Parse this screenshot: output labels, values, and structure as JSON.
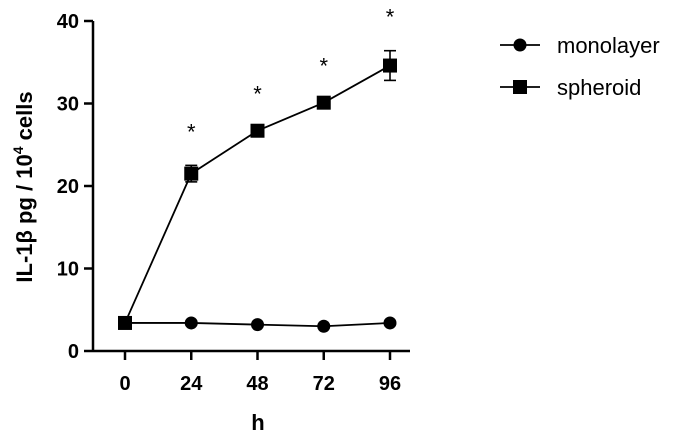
{
  "chart_data": {
    "type": "line",
    "title": "",
    "xlabel": "h",
    "ylabel": {
      "pre": "IL-1β  pg / 10",
      "sup": "4",
      "post": " cells"
    },
    "x": [
      0,
      24,
      48,
      72,
      96
    ],
    "x_tick_labels": [
      "0",
      "24",
      "48",
      "72",
      "96"
    ],
    "y_ticks": [
      0,
      10,
      20,
      30,
      40
    ],
    "y_tick_labels": [
      "0",
      "10",
      "20",
      "30",
      "40"
    ],
    "ylim": [
      0,
      40
    ],
    "legend_position": "top-right",
    "grid": false,
    "series": [
      {
        "name": "monolayer",
        "marker": "circle",
        "values": [
          3.4,
          3.4,
          3.2,
          3.0,
          3.4
        ],
        "errors": [
          0.2,
          0.2,
          0.2,
          0.2,
          0.2
        ]
      },
      {
        "name": "spheroid",
        "marker": "square",
        "values": [
          3.4,
          21.5,
          26.7,
          30.1,
          34.6
        ],
        "errors": [
          0.2,
          1.0,
          0.4,
          0.4,
          1.8
        ]
      }
    ],
    "significance_marks": [
      {
        "x": 24,
        "text": "*"
      },
      {
        "x": 48,
        "text": "*"
      },
      {
        "x": 72,
        "text": "*"
      },
      {
        "x": 96,
        "text": "*"
      }
    ]
  }
}
